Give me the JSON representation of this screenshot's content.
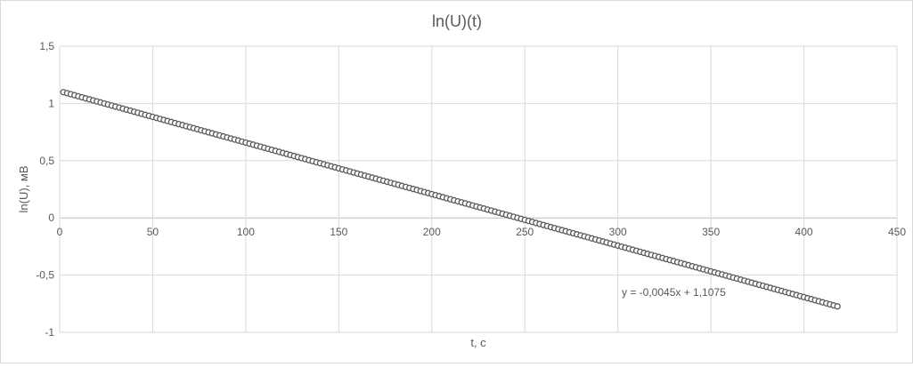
{
  "chart_data": {
    "type": "scatter",
    "title": "ln(U)(t)",
    "xlabel": "t, c",
    "ylabel": "ln(U), мВ",
    "xlim": [
      0,
      450
    ],
    "ylim": [
      -1,
      1.5
    ],
    "x_ticks": [
      "0",
      "50",
      "100",
      "150",
      "200",
      "250",
      "300",
      "350",
      "400",
      "450"
    ],
    "y_ticks": [
      "1,5",
      "1",
      "0,5",
      "0",
      "-0,5",
      "-1"
    ],
    "grid": true,
    "marker_color": "#595959",
    "marker_fill": "#ffffff",
    "series": [
      {
        "slope": -0.0045,
        "intercept": 1.1075,
        "x_start": 2,
        "x_end": 418,
        "x_step": 2
      }
    ],
    "trendline": {
      "slope": -0.0045,
      "intercept": 1.1075,
      "equation": "y = -0,0045x + 1,1075"
    }
  }
}
